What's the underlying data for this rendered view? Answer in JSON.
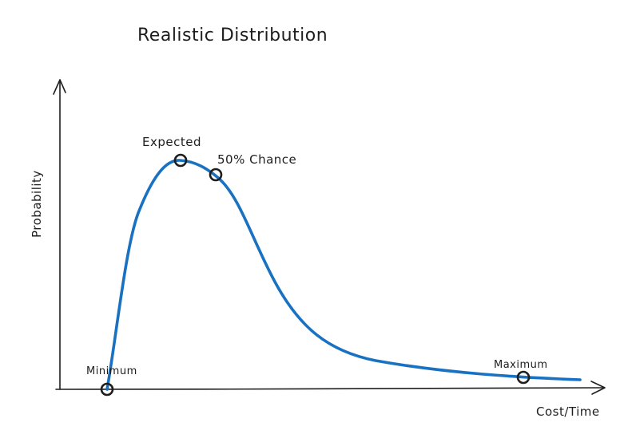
{
  "title": "Realistic Distribution",
  "axes": {
    "x_label": "Cost/Time",
    "y_label": "Probability"
  },
  "annotations": {
    "expected": "Expected",
    "fifty_percent": "50% Chance",
    "minimum": "Minimum",
    "maximum": "Maximum"
  },
  "colors": {
    "curve": "#1971c2",
    "ink": "#1e1e1e"
  }
}
